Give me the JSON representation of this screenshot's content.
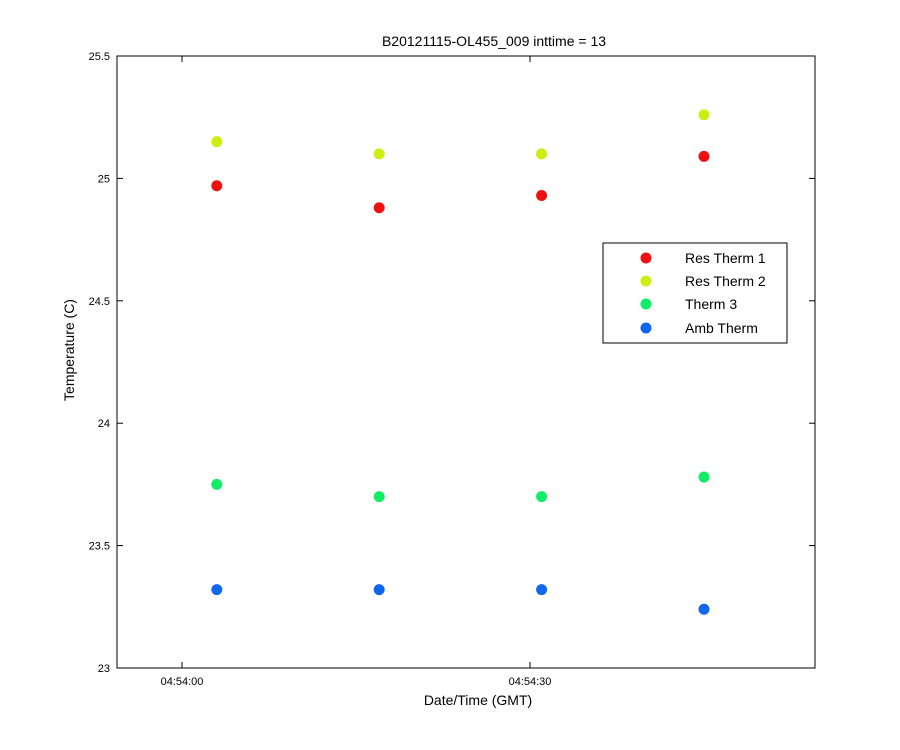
{
  "chart_data": {
    "type": "scatter",
    "title": "B20121115-OL455_009 inttime = 13",
    "xlabel": "Date/Time (GMT)",
    "ylabel": "Temperature (C)",
    "x_ticks": [
      "04:54:00",
      "04:54:30"
    ],
    "x": [
      "04:54:03",
      "04:54:17",
      "04:54:31",
      "04:54:45"
    ],
    "ylim": [
      23,
      25.5
    ],
    "y_ticks": [
      "23",
      "23.5",
      "24",
      "24.5",
      "25",
      "25.5"
    ],
    "grid": false,
    "legend_position": "right",
    "series": [
      {
        "name": "Res Therm 1",
        "color": "#ee1111",
        "values": [
          24.97,
          24.88,
          24.93,
          25.09
        ]
      },
      {
        "name": "Res Therm 2",
        "color": "#ccee11",
        "values": [
          25.15,
          25.1,
          25.1,
          25.26
        ]
      },
      {
        "name": "Therm 3",
        "color": "#11ee66",
        "values": [
          23.75,
          23.7,
          23.7,
          23.78
        ]
      },
      {
        "name": "Amb Therm",
        "color": "#1166ee",
        "values": [
          23.32,
          23.32,
          23.32,
          23.24
        ]
      }
    ]
  }
}
